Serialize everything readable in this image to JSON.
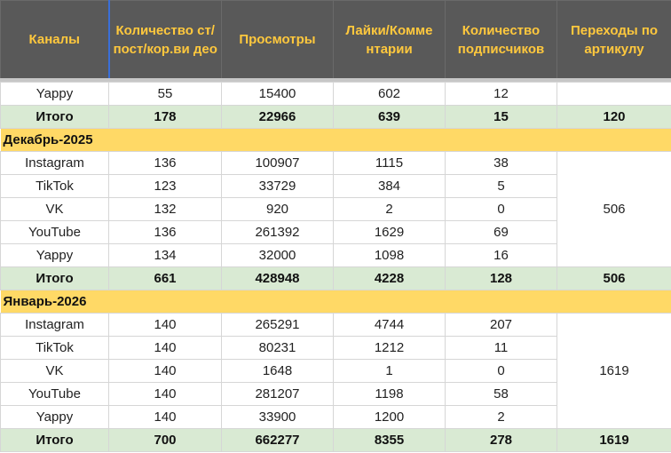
{
  "headers": [
    "Каналы",
    "Количество ст/пост/кор.видео",
    "Просмотры",
    "Лайки/Комментарии",
    "Количество подписчиков",
    "Переходы по артикулу"
  ],
  "header_display": [
    "Каналы",
    "Количество ст/пост/кор.ви деo",
    "Просмотры",
    "Лайки/Комме нтарии",
    "Количество подписчиков",
    "Переходы по артикулу"
  ],
  "top_row": {
    "channel": "Yappy",
    "posts": "55",
    "views": "15400",
    "likes": "602",
    "subs": "12",
    "clicks": ""
  },
  "top_total": {
    "label": "Итого",
    "posts": "178",
    "views": "22966",
    "likes": "639",
    "subs": "15",
    "clicks": "120"
  },
  "months": [
    {
      "title": "Декабрь-2025",
      "rows": [
        {
          "channel": "Instagram",
          "posts": "136",
          "views": "100907",
          "likes": "1115",
          "subs": "38"
        },
        {
          "channel": "TikTok",
          "posts": "123",
          "views": "33729",
          "likes": "384",
          "subs": "5"
        },
        {
          "channel": "VK",
          "posts": "132",
          "views": "920",
          "likes": "2",
          "subs": "0"
        },
        {
          "channel": "YouTube",
          "posts": "136",
          "views": "261392",
          "likes": "1629",
          "subs": "69"
        },
        {
          "channel": "Yappy",
          "posts": "134",
          "views": "32000",
          "likes": "1098",
          "subs": "16"
        }
      ],
      "merged_clicks": "506",
      "total": {
        "label": "Итого",
        "posts": "661",
        "views": "428948",
        "likes": "4228",
        "subs": "128",
        "clicks": "506"
      }
    },
    {
      "title": "Январь-2026",
      "rows": [
        {
          "channel": "Instagram",
          "posts": "140",
          "views": "265291",
          "likes": "4744",
          "subs": "207"
        },
        {
          "channel": "TikTok",
          "posts": "140",
          "views": "80231",
          "likes": "1212",
          "subs": "11"
        },
        {
          "channel": "VK",
          "posts": "140",
          "views": "1648",
          "likes": "1",
          "subs": "0"
        },
        {
          "channel": "YouTube",
          "posts": "140",
          "views": "281207",
          "likes": "1198",
          "subs": "58"
        },
        {
          "channel": "Yappy",
          "posts": "140",
          "views": "33900",
          "likes": "1200",
          "subs": "2"
        }
      ],
      "merged_clicks": "1619",
      "total": {
        "label": "Итого",
        "posts": "700",
        "views": "662277",
        "likes": "8355",
        "subs": "278",
        "clicks": "1619"
      }
    }
  ],
  "colors": {
    "header_bg": "#595959",
    "header_text": "#ffc83d",
    "total_bg": "#d9ead3",
    "month_bg": "#ffd966",
    "selection": "#3a6fd8"
  }
}
